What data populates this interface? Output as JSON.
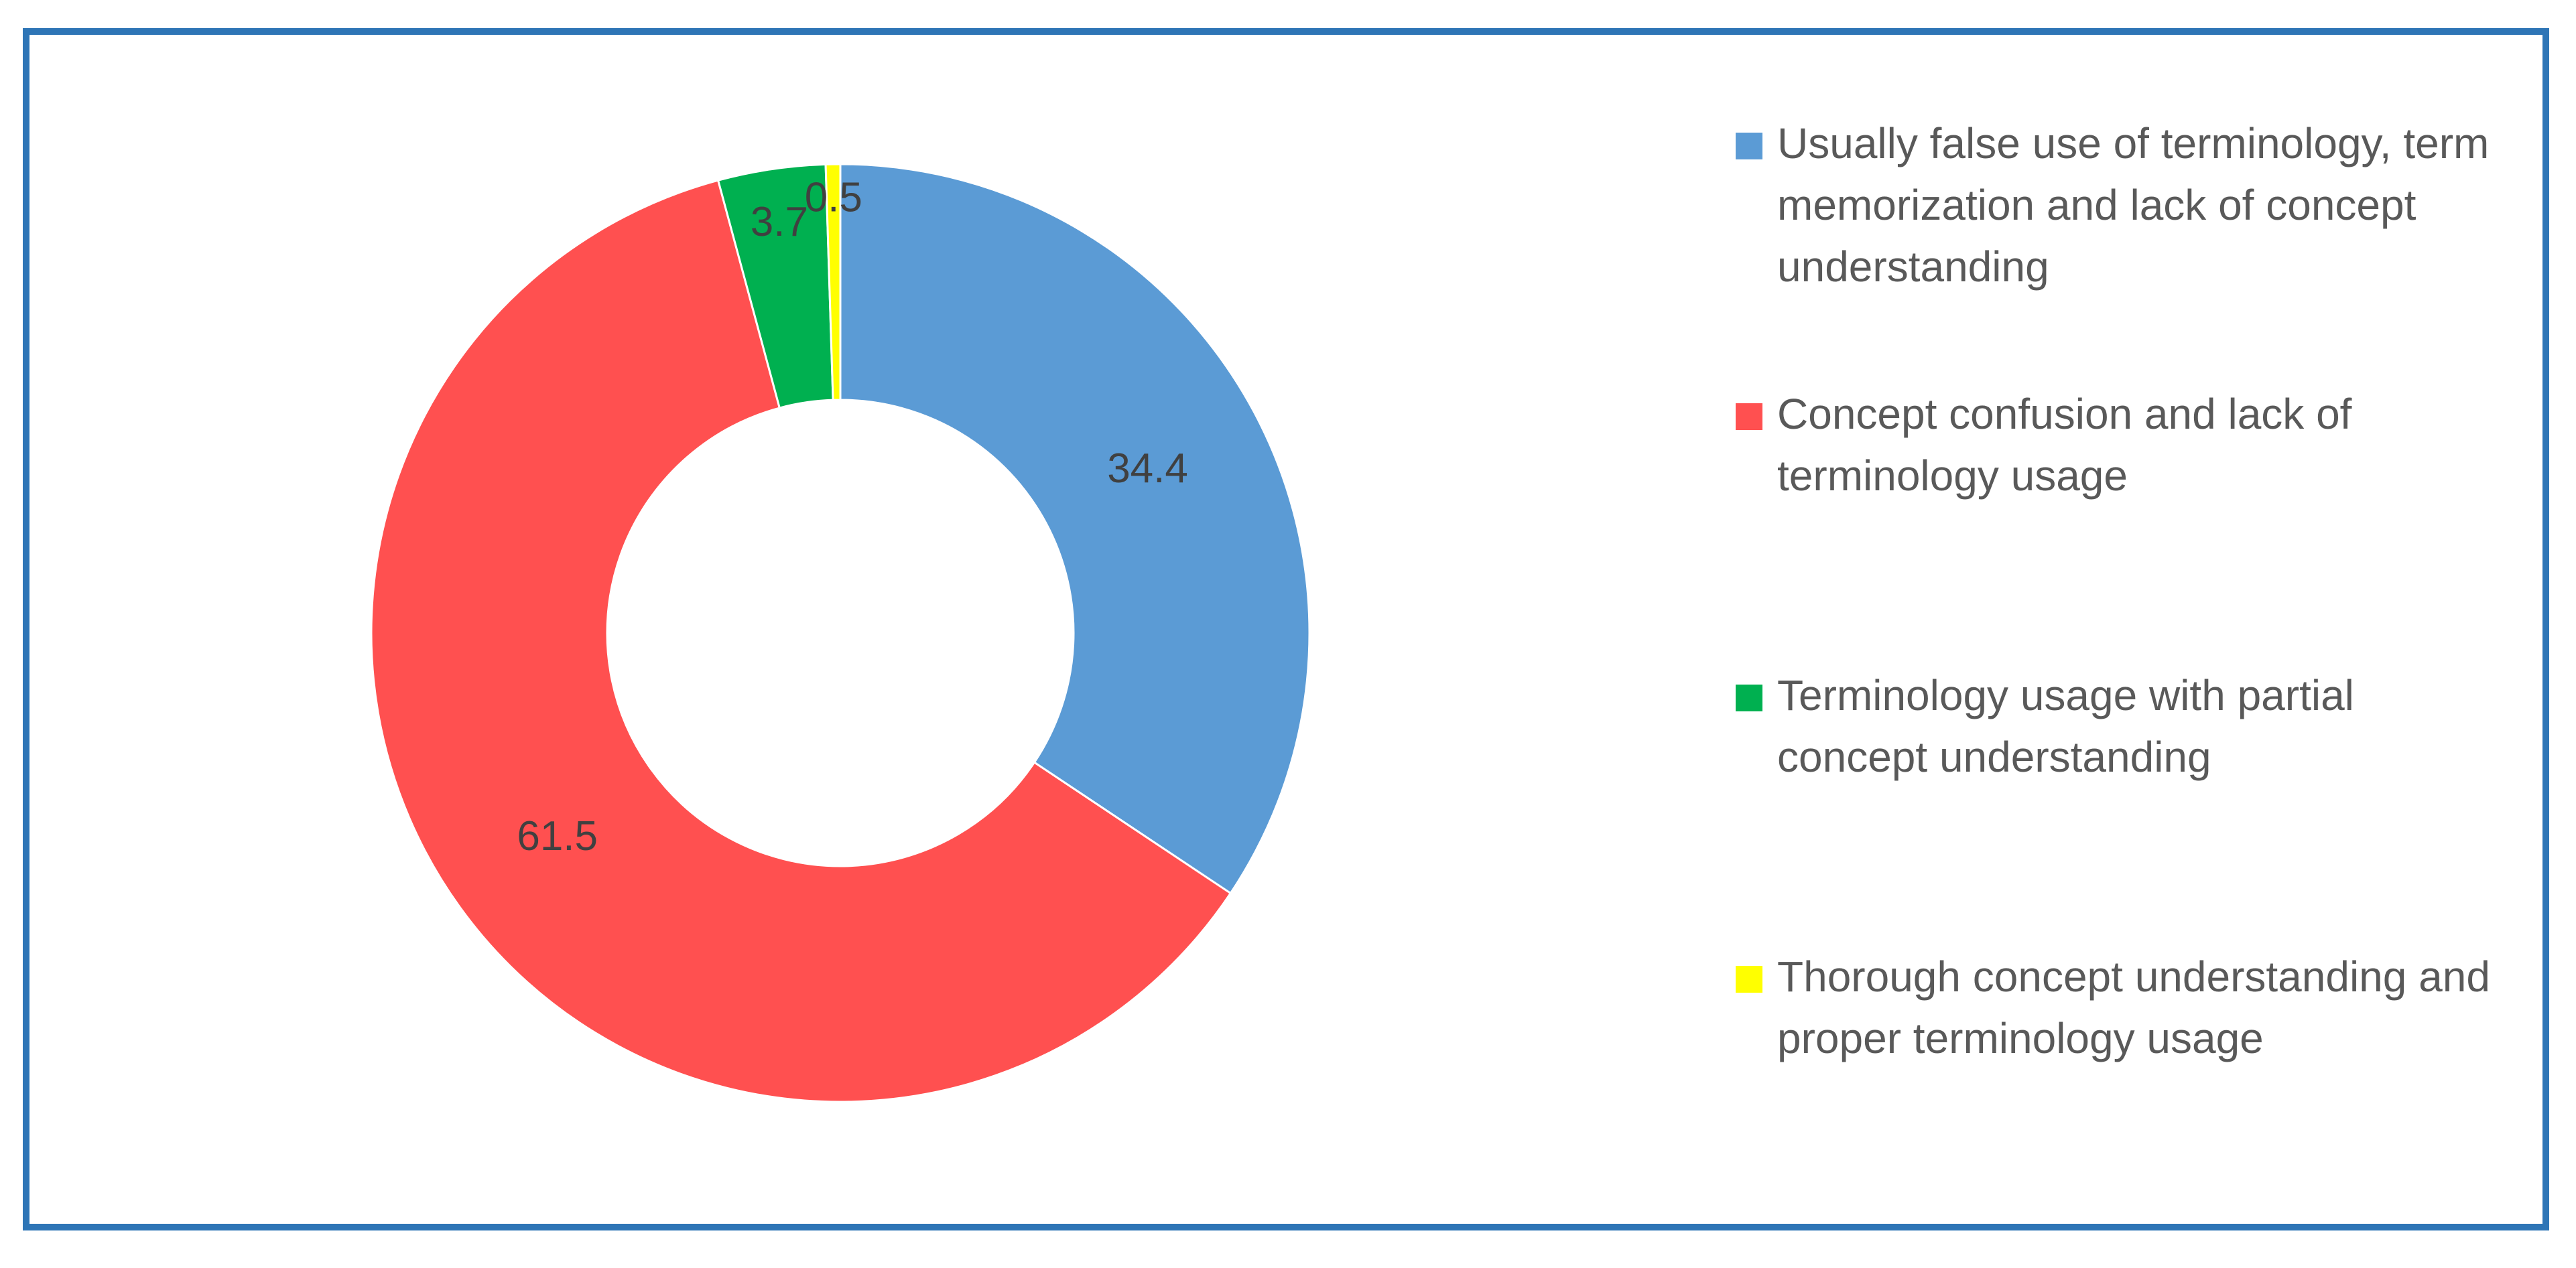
{
  "chart_data": {
    "type": "pie",
    "variant": "donut",
    "title": "",
    "legend_position": "right",
    "slices": [
      {
        "label": "Usually false use of terminology, term memorization and lack of concept understanding",
        "value": 34.4,
        "color": "#5b9bd5"
      },
      {
        "label": "Concept confusion and lack of terminology usage",
        "value": 61.5,
        "color": "#ff5050"
      },
      {
        "label": "Terminology usage with partial concept understanding",
        "value": 3.7,
        "color": "#00b050"
      },
      {
        "label": "Thorough concept understanding and proper terminology usage",
        "value": 0.5,
        "color": "#ffff00"
      }
    ],
    "data_labels": [
      "34.4",
      "61.5",
      "3.7",
      "0.5"
    ]
  },
  "colors": {
    "frame_border": "#2e75b6",
    "slice_separator": "#ffffff",
    "label_text": "#404040",
    "legend_text": "#595959"
  }
}
